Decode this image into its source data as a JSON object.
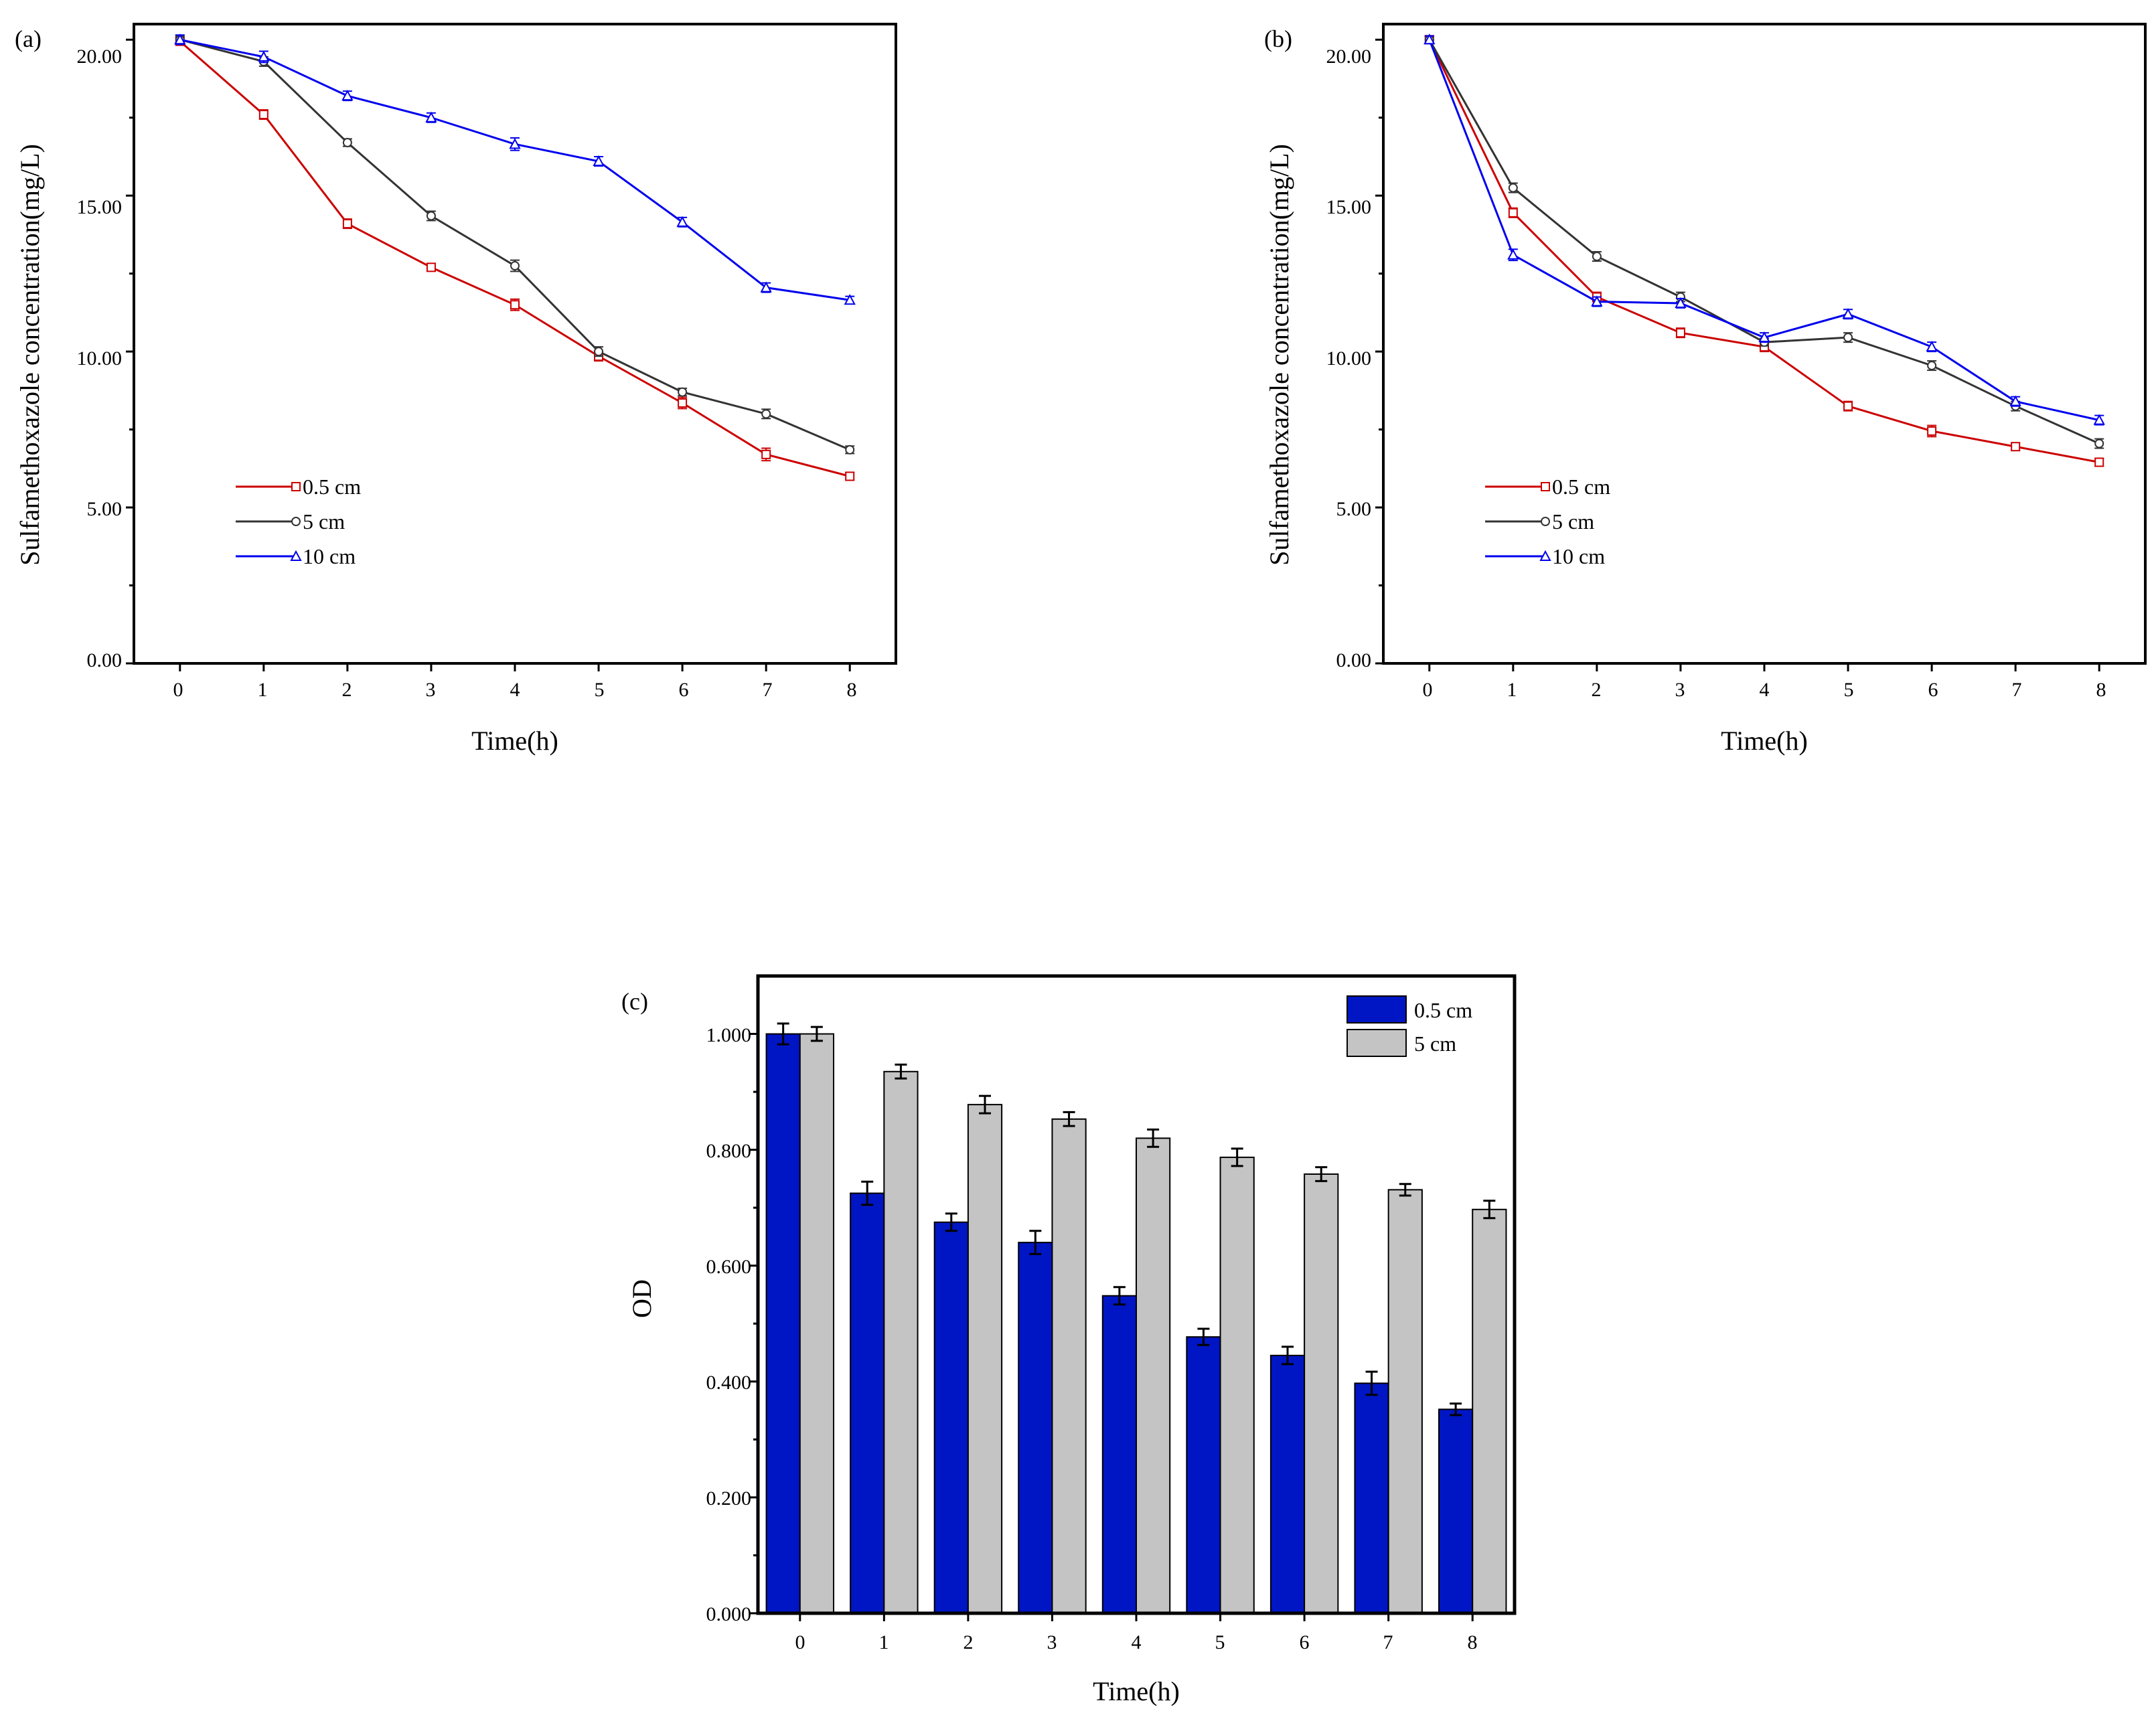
{
  "chart_data": [
    {
      "id": "a",
      "panel_label": "(a)",
      "type": "line",
      "xlabel": "Time(h)",
      "ylabel": "Sulfamethoxazole concentration(mg/L)",
      "x": [
        0,
        1,
        2,
        3,
        4,
        5,
        6,
        7,
        8
      ],
      "xlim": [
        -0.55,
        8.55
      ],
      "ylim": [
        0,
        20.5
      ],
      "yticks": [
        0,
        5,
        10,
        15,
        20
      ],
      "ytick_labels": [
        "0.00",
        "5.00",
        "10.00",
        "15.00",
        "20.00"
      ],
      "grid": false,
      "legend_position": "lower-left",
      "series": [
        {
          "name": "0.5 cm",
          "color": "#cc0000",
          "marker": "square",
          "values": [
            19.95,
            17.6,
            14.1,
            12.7,
            11.5,
            9.85,
            8.35,
            6.7,
            6.0
          ],
          "errors": [
            0.12,
            0.15,
            0.15,
            0.12,
            0.18,
            0.15,
            0.18,
            0.2,
            0.12
          ]
        },
        {
          "name": "5 cm",
          "color": "#333333",
          "marker": "circle",
          "values": [
            20.0,
            19.3,
            16.7,
            14.35,
            12.75,
            10.0,
            8.7,
            8.0,
            6.85
          ],
          "errors": [
            0.12,
            0.15,
            0.12,
            0.15,
            0.18,
            0.15,
            0.12,
            0.15,
            0.12
          ]
        },
        {
          "name": "10 cm",
          "color": "#0000ee",
          "marker": "triangle",
          "values": [
            20.0,
            19.45,
            18.2,
            17.5,
            16.65,
            16.1,
            14.15,
            12.05,
            11.65
          ],
          "errors": [
            0.15,
            0.18,
            0.15,
            0.15,
            0.2,
            0.15,
            0.15,
            0.15,
            0.12
          ]
        }
      ]
    },
    {
      "id": "b",
      "panel_label": "(b)",
      "type": "line",
      "xlabel": "Time(h)",
      "ylabel": "Sulfamethoxazole concentration(mg/L)",
      "x": [
        0,
        1,
        2,
        3,
        4,
        5,
        6,
        7,
        8
      ],
      "xlim": [
        -0.55,
        8.55
      ],
      "ylim": [
        0,
        20.5
      ],
      "yticks": [
        0,
        5,
        10,
        15,
        20
      ],
      "ytick_labels": [
        "0.00",
        "5.00",
        "10.00",
        "15.00",
        "20.00"
      ],
      "grid": false,
      "legend_position": "lower-left",
      "series": [
        {
          "name": "0.5 cm",
          "color": "#cc0000",
          "marker": "square",
          "values": [
            20.0,
            14.45,
            11.75,
            10.6,
            10.15,
            8.25,
            7.45,
            6.95,
            6.45
          ],
          "errors": [
            0.12,
            0.15,
            0.15,
            0.15,
            0.15,
            0.15,
            0.18,
            0.12,
            0.12
          ]
        },
        {
          "name": "5 cm",
          "color": "#333333",
          "marker": "circle",
          "values": [
            20.0,
            15.25,
            13.05,
            11.75,
            10.3,
            10.45,
            9.55,
            8.25,
            7.05
          ],
          "errors": [
            0.12,
            0.15,
            0.15,
            0.15,
            0.12,
            0.15,
            0.15,
            0.15,
            0.15
          ]
        },
        {
          "name": "10 cm",
          "color": "#0000ee",
          "marker": "triangle",
          "values": [
            20.0,
            13.1,
            11.6,
            11.55,
            10.45,
            11.2,
            10.15,
            8.4,
            7.8
          ],
          "errors": [
            0.12,
            0.18,
            0.15,
            0.15,
            0.15,
            0.15,
            0.15,
            0.15,
            0.15
          ]
        }
      ]
    },
    {
      "id": "c",
      "panel_label": "(c)",
      "type": "bar",
      "xlabel": "Time(h)",
      "ylabel": "OD",
      "categories": [
        "0",
        "1",
        "2",
        "3",
        "4",
        "5",
        "6",
        "7",
        "8"
      ],
      "ylim": [
        0,
        1.1
      ],
      "yticks": [
        0,
        0.2,
        0.4,
        0.6,
        0.8,
        1.0
      ],
      "ytick_labels": [
        "0.000",
        "0.200",
        "0.400",
        "0.600",
        "0.800",
        "1.000"
      ],
      "grid": false,
      "legend_position": "top-right",
      "series": [
        {
          "name": "0.5 cm",
          "color": "#0016c4",
          "values": [
            1.0,
            0.725,
            0.675,
            0.64,
            0.548,
            0.477,
            0.445,
            0.397,
            0.352
          ],
          "errors": [
            0.018,
            0.02,
            0.015,
            0.02,
            0.015,
            0.014,
            0.015,
            0.02,
            0.01
          ]
        },
        {
          "name": "5 cm",
          "color": "#c4c4c4",
          "values": [
            1.0,
            0.935,
            0.878,
            0.853,
            0.82,
            0.787,
            0.758,
            0.731,
            0.697
          ],
          "errors": [
            0.012,
            0.012,
            0.015,
            0.012,
            0.015,
            0.015,
            0.012,
            0.01,
            0.015
          ]
        }
      ]
    }
  ]
}
